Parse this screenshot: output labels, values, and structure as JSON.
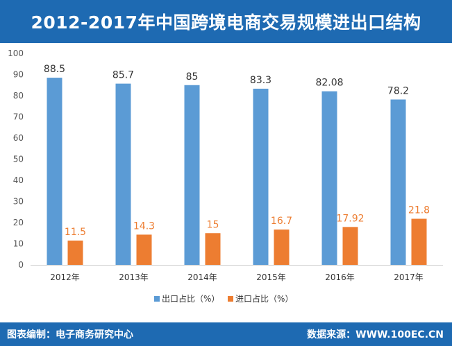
{
  "header": {
    "title": "2012-2017年中国跨境电商交易规模进出口结构"
  },
  "footer": {
    "left": "图表编制：电子商务研究中心",
    "right": "数据来源：WWW.100EC.CN"
  },
  "colors": {
    "brand": "#1e6ab2",
    "series_a": "#5b9bd5",
    "series_b": "#ed7d31"
  },
  "chart_data": {
    "type": "bar",
    "title": "2012-2017年中国跨境电商交易规模进出口结构",
    "categories": [
      "2012年",
      "2013年",
      "2014年",
      "2015年",
      "2016年",
      "2017年"
    ],
    "series": [
      {
        "name": "出口占比（%）",
        "values": [
          88.5,
          85.7,
          85,
          83.3,
          82.08,
          78.2
        ],
        "labels": [
          "88.5",
          "85.7",
          "85",
          "83.3",
          "82.08",
          "78.2"
        ]
      },
      {
        "name": "进口占比（%）",
        "values": [
          11.5,
          14.3,
          15,
          16.7,
          17.92,
          21.8
        ],
        "labels": [
          "11.5",
          "14.3",
          "15",
          "16.7",
          "17.92",
          "21.8"
        ]
      }
    ],
    "yticks": [
      "0",
      "10",
      "20",
      "30",
      "40",
      "50",
      "60",
      "70",
      "80",
      "90",
      "100"
    ],
    "ylim": [
      0,
      100
    ],
    "xlabel": "",
    "ylabel": "",
    "grid": false,
    "legend": "bottom-center"
  }
}
